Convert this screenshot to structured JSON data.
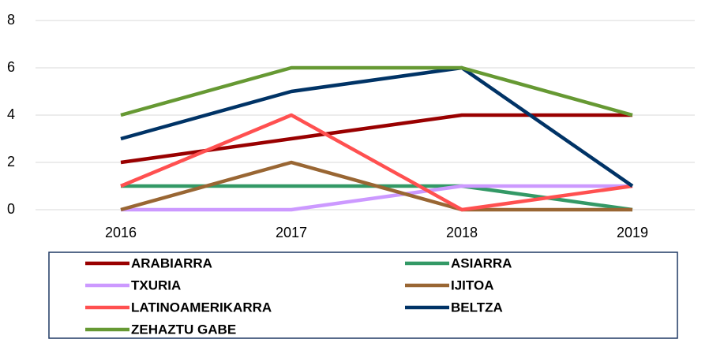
{
  "chart_data": {
    "type": "line",
    "categories": [
      "2016",
      "2017",
      "2018",
      "2019"
    ],
    "series": [
      {
        "name": "ARABIARRA",
        "color": "#990000",
        "values": [
          2,
          3,
          4,
          4
        ]
      },
      {
        "name": "ASIARRA",
        "color": "#339966",
        "values": [
          1,
          1,
          1,
          0
        ]
      },
      {
        "name": "TXURIA",
        "color": "#CC99FF",
        "values": [
          0,
          0,
          1,
          1
        ]
      },
      {
        "name": "IJITOA",
        "color": "#996633",
        "values": [
          0,
          2,
          0,
          0
        ]
      },
      {
        "name": "LATINOAMERIKARRA",
        "color": "#FF5050",
        "values": [
          1,
          4,
          0,
          1
        ]
      },
      {
        "name": "BELTZA",
        "color": "#003366",
        "values": [
          3,
          5,
          6,
          1
        ]
      },
      {
        "name": "ZEHAZTU GABE",
        "color": "#669933",
        "values": [
          4,
          6,
          6,
          4
        ]
      }
    ],
    "ylim": [
      0,
      8
    ],
    "yticks": [
      0,
      2,
      4,
      6,
      8
    ],
    "grid": true
  }
}
